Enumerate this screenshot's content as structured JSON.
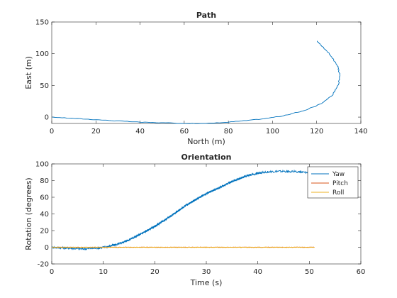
{
  "chart_data": [
    {
      "type": "line",
      "title": "Path",
      "xlabel": "North (m)",
      "ylabel": "East (m)",
      "xlim": [
        0,
        140
      ],
      "ylim": [
        -10,
        150
      ],
      "xticks": [
        0,
        20,
        40,
        60,
        80,
        100,
        120,
        140
      ],
      "yticks": [
        0,
        50,
        100,
        150
      ],
      "series": [
        {
          "color": "#0072BD",
          "x": [
            0,
            20,
            40,
            60,
            70,
            80,
            95,
            105,
            115,
            122,
            127,
            130,
            130.5,
            129.5,
            127,
            123,
            120
          ],
          "y": [
            0,
            -4,
            -8,
            -10,
            -10,
            -8,
            -3,
            2,
            11,
            21,
            34,
            52,
            66,
            80,
            95,
            110,
            120
          ]
        }
      ]
    },
    {
      "type": "line",
      "title": "Orientation",
      "xlabel": "Time (s)",
      "ylabel": "Rotation (degrees)",
      "xlim": [
        0,
        60
      ],
      "ylim": [
        -20,
        100
      ],
      "xticks": [
        0,
        10,
        20,
        30,
        40,
        50,
        60
      ],
      "yticks": [
        -20,
        0,
        20,
        40,
        60,
        80,
        100
      ],
      "legend_position": "top-right",
      "series": [
        {
          "name": "Yaw",
          "color": "#0072BD",
          "x": [
            0,
            3,
            6,
            9,
            11,
            13,
            15,
            17,
            20,
            23,
            26,
            29,
            32,
            35,
            38,
            41,
            44,
            47,
            50,
            51
          ],
          "y": [
            0,
            -1,
            -2,
            -1,
            1,
            4,
            9,
            15,
            25,
            37,
            50,
            61,
            70,
            79,
            86,
            90,
            91,
            91,
            89,
            90
          ]
        },
        {
          "name": "Pitch",
          "color": "#D95319",
          "x": [
            0,
            10,
            20,
            30,
            40,
            51
          ],
          "y": [
            0,
            0,
            0,
            0,
            0,
            0
          ]
        },
        {
          "name": "Roll",
          "color": "#EDB120",
          "x": [
            0,
            10,
            20,
            30,
            40,
            51
          ],
          "y": [
            0,
            0,
            0,
            0,
            0,
            0
          ]
        }
      ]
    }
  ]
}
